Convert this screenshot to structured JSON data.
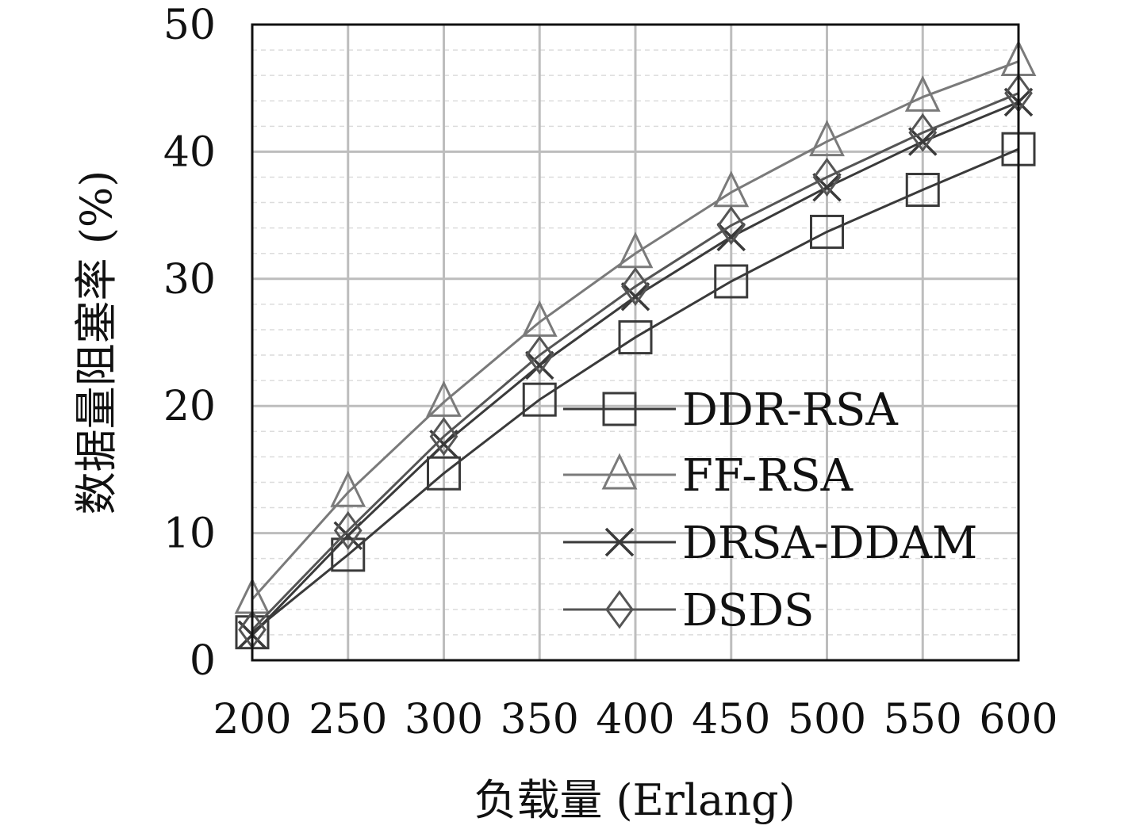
{
  "chart_data": {
    "type": "line",
    "title": "",
    "xlabel": "负载量 (Erlang)",
    "ylabel": "数据量阻塞率 (%)",
    "x": [
      200,
      250,
      300,
      350,
      400,
      450,
      500,
      550,
      600
    ],
    "xlim": [
      200,
      600
    ],
    "ylim": [
      0,
      50
    ],
    "x_ticks": [
      "200",
      "250",
      "300",
      "350",
      "400",
      "450",
      "500",
      "550",
      "600"
    ],
    "y_ticks": [
      "0",
      "10",
      "20",
      "30",
      "40",
      "50"
    ],
    "grid": true,
    "legend_position": "center-right",
    "series": [
      {
        "name": "DDR-RSA",
        "marker": "square",
        "color": "#3a3a3a",
        "values": [
          2.2,
          8.3,
          14.7,
          20.5,
          25.4,
          29.8,
          33.7,
          37.0,
          40.2
        ]
      },
      {
        "name": "FF-RSA",
        "marker": "triangle",
        "color": "#7a7a7a",
        "values": [
          4.8,
          13.2,
          20.3,
          26.6,
          32.0,
          36.8,
          40.8,
          44.3,
          47.1
        ]
      },
      {
        "name": "DRSA-DDAM",
        "marker": "x",
        "color": "#3a3a3a",
        "values": [
          2.0,
          9.8,
          17.0,
          23.2,
          28.6,
          33.3,
          37.2,
          40.8,
          43.9
        ]
      },
      {
        "name": "DSDS",
        "marker": "diamond",
        "color": "#555555",
        "values": [
          2.4,
          10.2,
          17.6,
          24.0,
          29.4,
          34.2,
          38.0,
          41.5,
          44.6
        ]
      }
    ]
  }
}
